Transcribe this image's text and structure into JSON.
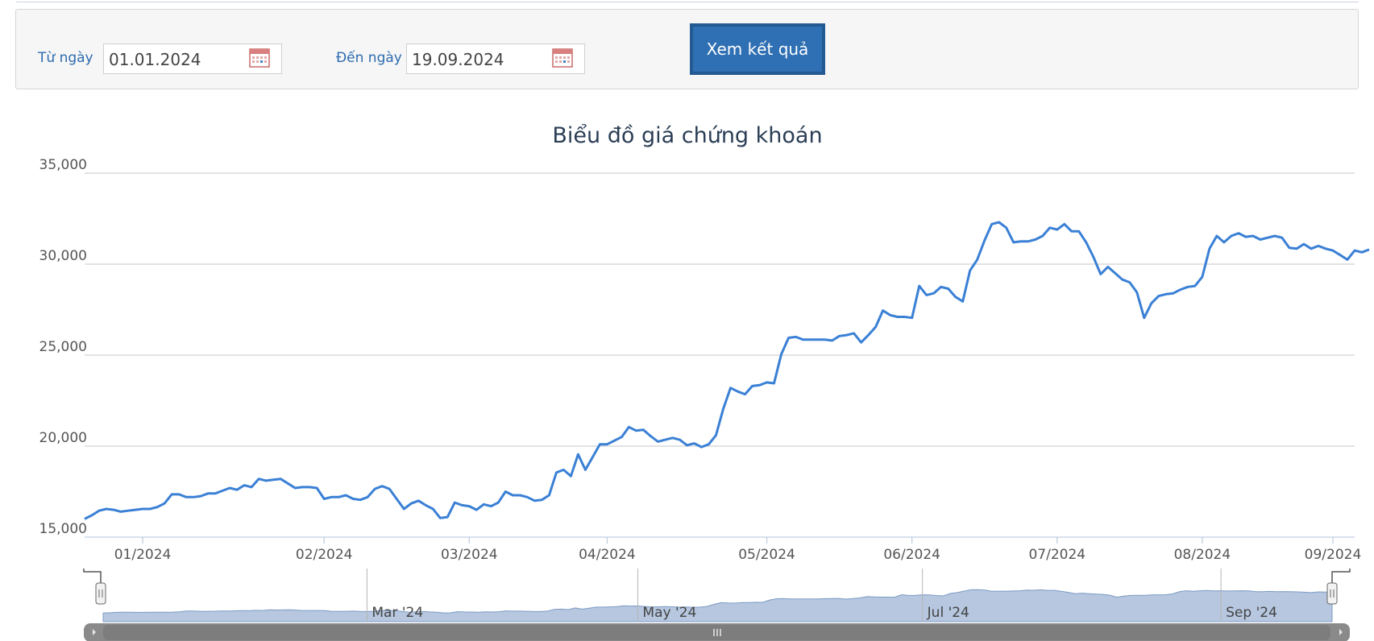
{
  "filter": {
    "from_label": "Từ ngày",
    "from_value": "01.01.2024",
    "to_label": "Đến ngày",
    "to_value": "19.09.2024",
    "submit_label": "Xem kết quả"
  },
  "colors": {
    "line": "#3a80d5",
    "navigator_fill": "#b6c7df",
    "button": "#2f6fb3"
  },
  "chart_data": {
    "type": "line",
    "title": "Biểu đồ giá chứng khoán",
    "ylim": [
      15000,
      35000
    ],
    "yticks": [
      "15,000",
      "20,000",
      "25,000",
      "30,000",
      "35,000"
    ],
    "ytick_values": [
      15000,
      20000,
      25000,
      30000,
      35000
    ],
    "grid": true,
    "legend": "none",
    "xticks": [
      {
        "label": "01/2024",
        "day": 7
      },
      {
        "label": "02/2024",
        "day": 32
      },
      {
        "label": "03/2024",
        "day": 52
      },
      {
        "label": "04/2024",
        "day": 71
      },
      {
        "label": "05/2024",
        "day": 93
      },
      {
        "label": "06/2024",
        "day": 113
      },
      {
        "label": "07/2024",
        "day": 133
      },
      {
        "label": "08/2024",
        "day": 153
      },
      {
        "label": "09/2024",
        "day": 171
      }
    ],
    "x_range": [
      -1,
      174
    ],
    "navigator_ticks": [
      {
        "label": "Mar '24",
        "day": 37
      },
      {
        "label": "May '24",
        "day": 76
      },
      {
        "label": "Jul '24",
        "day": 117
      },
      {
        "label": "Sep '24",
        "day": 160
      }
    ],
    "series": [
      {
        "values": [
          [
            -1,
            16000
          ],
          [
            0,
            16200
          ],
          [
            1,
            16450
          ],
          [
            2,
            16550
          ],
          [
            3,
            16500
          ],
          [
            4,
            16400
          ],
          [
            5,
            16450
          ],
          [
            6,
            16500
          ],
          [
            7,
            16550
          ],
          [
            8,
            16550
          ],
          [
            9,
            16650
          ],
          [
            10,
            16850
          ],
          [
            11,
            17350
          ],
          [
            12,
            17350
          ],
          [
            13,
            17200
          ],
          [
            14,
            17200
          ],
          [
            15,
            17250
          ],
          [
            16,
            17400
          ],
          [
            17,
            17400
          ],
          [
            18,
            17550
          ],
          [
            19,
            17700
          ],
          [
            20,
            17600
          ],
          [
            21,
            17850
          ],
          [
            22,
            17750
          ],
          [
            23,
            18200
          ],
          [
            24,
            18100
          ],
          [
            25,
            18150
          ],
          [
            26,
            18200
          ],
          [
            27,
            17950
          ],
          [
            28,
            17700
          ],
          [
            29,
            17750
          ],
          [
            30,
            17750
          ],
          [
            31,
            17700
          ],
          [
            32,
            17100
          ],
          [
            33,
            17200
          ],
          [
            34,
            17200
          ],
          [
            35,
            17300
          ],
          [
            36,
            17100
          ],
          [
            37,
            17050
          ],
          [
            38,
            17200
          ],
          [
            39,
            17650
          ],
          [
            40,
            17800
          ],
          [
            41,
            17650
          ],
          [
            42,
            17100
          ],
          [
            43,
            16550
          ],
          [
            44,
            16850
          ],
          [
            45,
            17000
          ],
          [
            46,
            16750
          ],
          [
            47,
            16550
          ],
          [
            48,
            16050
          ],
          [
            49,
            16100
          ],
          [
            50,
            16900
          ],
          [
            51,
            16750
          ],
          [
            52,
            16700
          ],
          [
            53,
            16500
          ],
          [
            54,
            16800
          ],
          [
            55,
            16700
          ],
          [
            56,
            16900
          ],
          [
            57,
            17500
          ],
          [
            58,
            17300
          ],
          [
            59,
            17300
          ],
          [
            60,
            17200
          ],
          [
            61,
            17000
          ],
          [
            62,
            17050
          ],
          [
            63,
            17300
          ],
          [
            64,
            18550
          ],
          [
            65,
            18700
          ],
          [
            66,
            18350
          ],
          [
            67,
            19550
          ],
          [
            68,
            18700
          ],
          [
            69,
            19400
          ],
          [
            70,
            20100
          ],
          [
            71,
            20100
          ],
          [
            72,
            20300
          ],
          [
            73,
            20500
          ],
          [
            74,
            21050
          ],
          [
            75,
            20850
          ],
          [
            76,
            20900
          ],
          [
            77,
            20550
          ],
          [
            78,
            20250
          ],
          [
            79,
            20350
          ],
          [
            80,
            20450
          ],
          [
            81,
            20350
          ],
          [
            82,
            20050
          ],
          [
            83,
            20150
          ],
          [
            84,
            19950
          ],
          [
            85,
            20100
          ],
          [
            86,
            20600
          ],
          [
            87,
            22050
          ],
          [
            88,
            23200
          ],
          [
            89,
            23000
          ],
          [
            90,
            22850
          ],
          [
            91,
            23300
          ],
          [
            92,
            23350
          ],
          [
            93,
            23500
          ],
          [
            94,
            23450
          ],
          [
            95,
            25050
          ],
          [
            96,
            25950
          ],
          [
            97,
            26000
          ],
          [
            98,
            25850
          ],
          [
            99,
            25850
          ],
          [
            100,
            25850
          ],
          [
            101,
            25850
          ],
          [
            102,
            25800
          ],
          [
            103,
            26050
          ],
          [
            104,
            26100
          ],
          [
            105,
            26200
          ],
          [
            106,
            25700
          ],
          [
            107,
            26100
          ],
          [
            108,
            26550
          ],
          [
            109,
            27450
          ],
          [
            110,
            27200
          ],
          [
            111,
            27100
          ],
          [
            112,
            27100
          ],
          [
            113,
            27050
          ],
          [
            114,
            28800
          ],
          [
            115,
            28300
          ],
          [
            116,
            28400
          ],
          [
            117,
            28750
          ],
          [
            118,
            28650
          ],
          [
            119,
            28200
          ],
          [
            120,
            27950
          ],
          [
            121,
            29650
          ],
          [
            122,
            30250
          ],
          [
            123,
            31300
          ],
          [
            124,
            32200
          ],
          [
            125,
            32300
          ],
          [
            126,
            32000
          ],
          [
            127,
            31200
          ],
          [
            128,
            31250
          ],
          [
            129,
            31250
          ],
          [
            130,
            31350
          ],
          [
            131,
            31550
          ],
          [
            132,
            32000
          ],
          [
            133,
            31900
          ],
          [
            134,
            32200
          ],
          [
            135,
            31800
          ],
          [
            136,
            31800
          ],
          [
            137,
            31200
          ],
          [
            138,
            30400
          ],
          [
            139,
            29450
          ],
          [
            140,
            29850
          ],
          [
            141,
            29500
          ],
          [
            142,
            29150
          ],
          [
            143,
            29000
          ],
          [
            144,
            28450
          ],
          [
            145,
            27050
          ],
          [
            146,
            27850
          ],
          [
            147,
            28250
          ],
          [
            148,
            28350
          ],
          [
            149,
            28400
          ],
          [
            150,
            28600
          ],
          [
            151,
            28750
          ],
          [
            152,
            28800
          ],
          [
            153,
            29300
          ],
          [
            154,
            30850
          ],
          [
            155,
            31550
          ],
          [
            156,
            31200
          ],
          [
            157,
            31550
          ],
          [
            158,
            31700
          ],
          [
            159,
            31500
          ],
          [
            160,
            31550
          ],
          [
            161,
            31350
          ],
          [
            162,
            31450
          ],
          [
            163,
            31550
          ],
          [
            164,
            31450
          ],
          [
            165,
            30900
          ],
          [
            166,
            30850
          ],
          [
            167,
            31100
          ],
          [
            168,
            30850
          ],
          [
            169,
            31000
          ],
          [
            170,
            30850
          ],
          [
            171,
            30750
          ],
          [
            172,
            30500
          ],
          [
            173,
            30250
          ],
          [
            174,
            30750
          ],
          [
            175,
            30650
          ],
          [
            176,
            30800
          ]
        ]
      }
    ]
  }
}
